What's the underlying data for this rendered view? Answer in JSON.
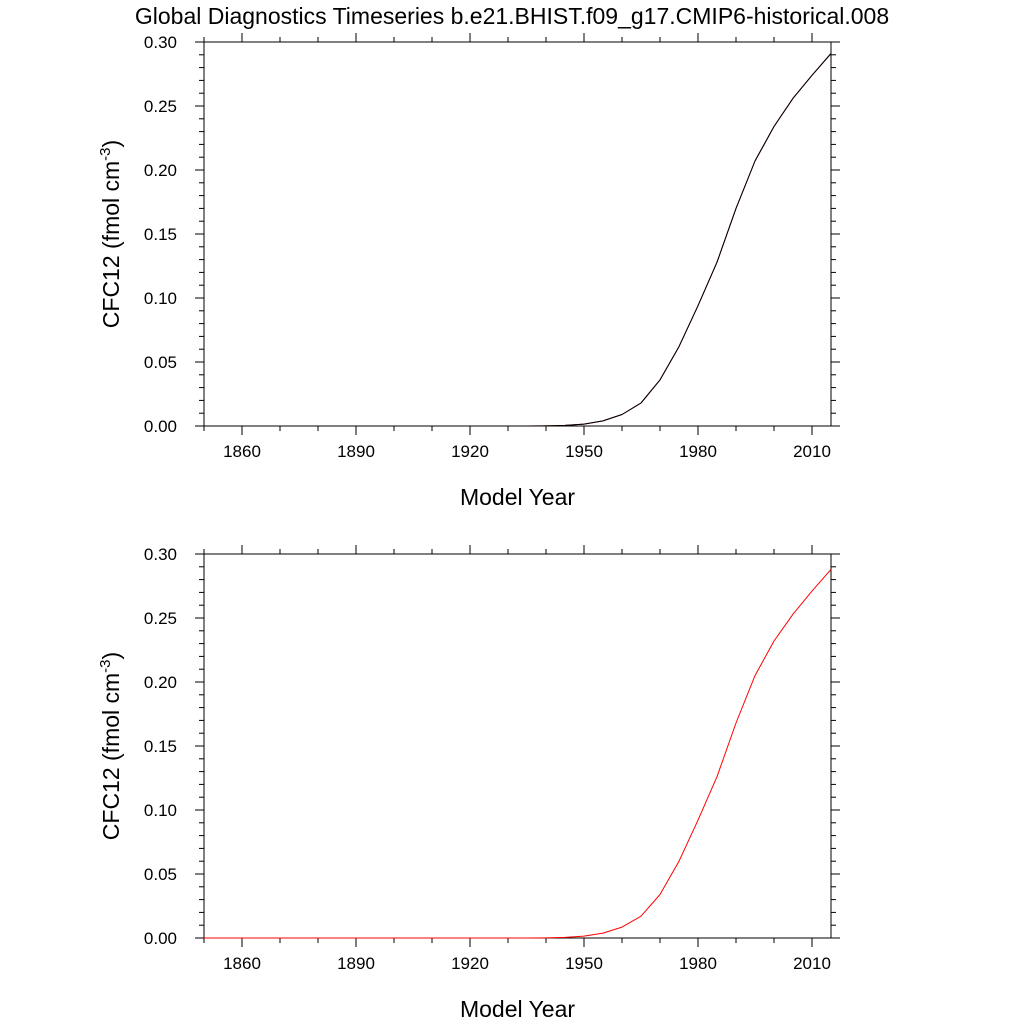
{
  "title": "Global Diagnostics Timeseries b.e21.BHIST.f09_g17.CMIP6-historical.008",
  "chart_data": [
    {
      "type": "line",
      "xlabel": "Model Year",
      "ylabel": {
        "prefix": "CFC12 (fmol cm",
        "exponent": "-3",
        "suffix": ")"
      },
      "xlim": [
        1850,
        2015
      ],
      "ylim": [
        0,
        0.3
      ],
      "xticks": [
        1860,
        1890,
        1920,
        1950,
        1980,
        2010
      ],
      "yticks": [
        0.0,
        0.05,
        0.1,
        0.15,
        0.2,
        0.25,
        0.3
      ],
      "ytick_labels": [
        "0.00",
        "0.05",
        "0.10",
        "0.15",
        "0.20",
        "0.25",
        "0.30"
      ],
      "grid": false,
      "series": [
        {
          "color": "#8b0000",
          "x": [
            1850,
            1900,
            1935,
            1940,
            1945,
            1950,
            1955,
            1960,
            1965,
            1970,
            1975,
            1980,
            1985,
            1990,
            1995,
            2000,
            2005,
            2010,
            2015
          ],
          "y": [
            0,
            0,
            0,
            0.0001,
            0.0005,
            0.0015,
            0.004,
            0.009,
            0.018,
            0.036,
            0.062,
            0.094,
            0.128,
            0.17,
            0.207,
            0.234,
            0.256,
            0.274,
            0.291
          ]
        },
        {
          "color": "#000000",
          "x": [
            1850,
            1900,
            1935,
            1940,
            1945,
            1950,
            1955,
            1960,
            1965,
            1970,
            1975,
            1980,
            1985,
            1990,
            1995,
            2000,
            2005,
            2010,
            2015
          ],
          "y": [
            0,
            0,
            0,
            0.0001,
            0.0005,
            0.0015,
            0.004,
            0.009,
            0.018,
            0.036,
            0.062,
            0.094,
            0.128,
            0.17,
            0.207,
            0.234,
            0.256,
            0.274,
            0.291
          ]
        }
      ]
    },
    {
      "type": "line",
      "xlabel": "Model Year",
      "ylabel": {
        "prefix": "CFC12 (fmol cm",
        "exponent": "-3",
        "suffix": ")"
      },
      "xlim": [
        1850,
        2015
      ],
      "ylim": [
        0,
        0.3
      ],
      "xticks": [
        1860,
        1890,
        1920,
        1950,
        1980,
        2010
      ],
      "yticks": [
        0.0,
        0.05,
        0.1,
        0.15,
        0.2,
        0.25,
        0.3
      ],
      "ytick_labels": [
        "0.00",
        "0.05",
        "0.10",
        "0.15",
        "0.20",
        "0.25",
        "0.30"
      ],
      "grid": false,
      "series": [
        {
          "color": "#ff0000",
          "x": [
            1850,
            1900,
            1935,
            1940,
            1945,
            1950,
            1955,
            1960,
            1965,
            1970,
            1975,
            1980,
            1985,
            1990,
            1995,
            2000,
            2005,
            2010,
            2015
          ],
          "y": [
            0,
            0,
            0,
            0.0001,
            0.0005,
            0.0015,
            0.0038,
            0.0085,
            0.017,
            0.034,
            0.06,
            0.092,
            0.126,
            0.168,
            0.205,
            0.232,
            0.253,
            0.271,
            0.288
          ]
        }
      ]
    }
  ]
}
